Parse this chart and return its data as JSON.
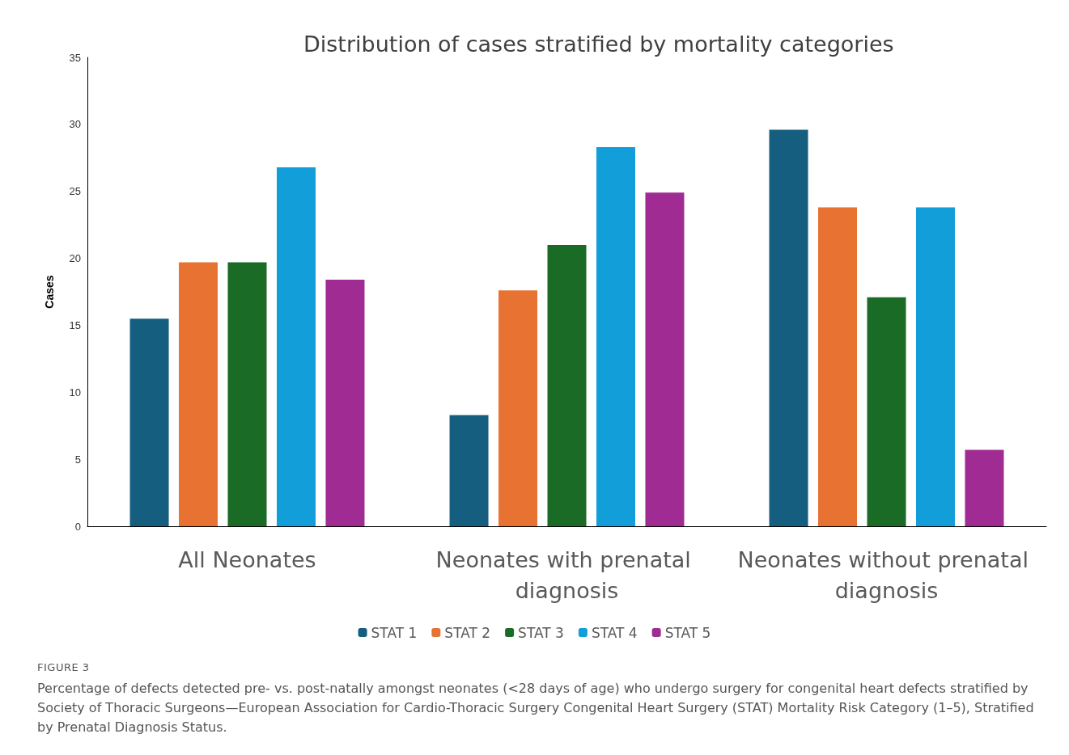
{
  "chart_data": {
    "type": "bar",
    "title": "Distribution of cases stratified by mortality categories",
    "ylabel": "Cases",
    "categories": [
      "All Neonates",
      "Neonates with prenatal diagnosis",
      "Neonates without prenatal diagnosis"
    ],
    "series": [
      {
        "name": "STAT 1",
        "color": "#155e80",
        "values": [
          15.5,
          8.3,
          29.6
        ]
      },
      {
        "name": "STAT 2",
        "color": "#e87232",
        "values": [
          19.7,
          17.6,
          23.8
        ]
      },
      {
        "name": "STAT 3",
        "color": "#1a6b25",
        "values": [
          19.7,
          21.0,
          17.1
        ]
      },
      {
        "name": "STAT 4",
        "color": "#129ed8",
        "values": [
          26.8,
          28.3,
          23.8
        ]
      },
      {
        "name": "STAT 5",
        "color": "#9f2b93",
        "values": [
          18.4,
          24.9,
          5.7
        ]
      }
    ],
    "ylim": [
      0,
      35
    ],
    "yticks": [
      0,
      5,
      10,
      15,
      20,
      25,
      30,
      35
    ],
    "grid": false,
    "legend": "bottom",
    "annotations": [
      "FIGURE 3",
      "Percentage of defects detected pre- vs. post-natally amongst neonates (<28 days of age) who undergo surgery for congenital heart defects stratified by Society of Thoracic Surgeons—European Association for Cardio-Thoracic Surgery Congenital Heart Surgery (STAT) Mortality Risk Category (1–5), Stratified by Prenatal Diagnosis Status."
    ]
  }
}
